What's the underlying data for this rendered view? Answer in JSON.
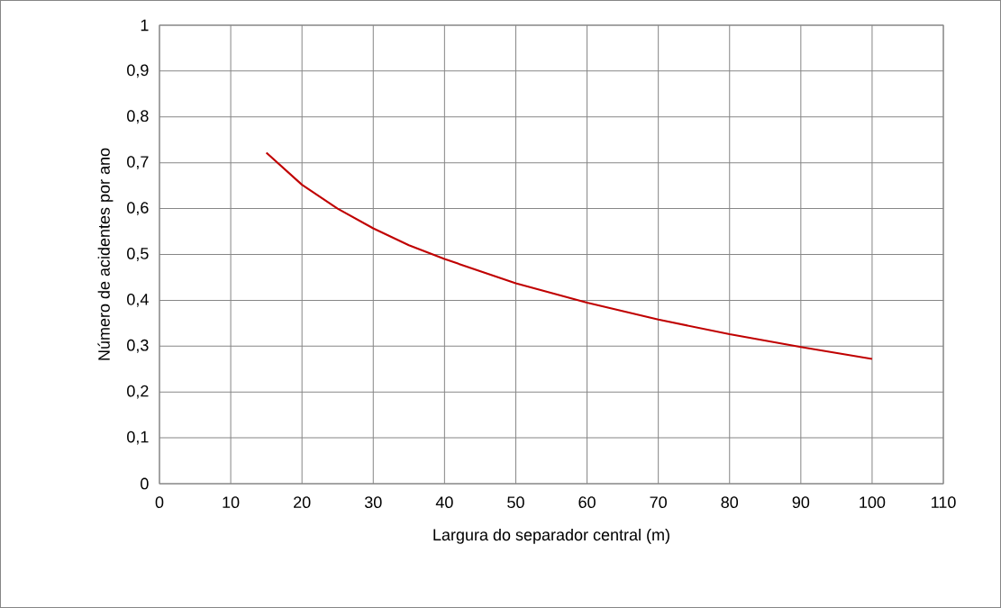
{
  "chart_data": {
    "type": "line",
    "xlabel": "Largura do separador central (m)",
    "ylabel": "Número de acidentes por ano",
    "x": [
      15,
      20,
      25,
      30,
      35,
      40,
      50,
      60,
      70,
      80,
      90,
      100
    ],
    "series": [
      {
        "color": "#c00000",
        "values": [
          0.722,
          0.652,
          0.6,
          0.557,
          0.52,
          0.49,
          0.437,
          0.395,
          0.358,
          0.326,
          0.298,
          0.272
        ]
      }
    ],
    "xlim": [
      0,
      110
    ],
    "xticks": [
      0,
      10,
      20,
      30,
      40,
      50,
      60,
      70,
      80,
      90,
      100,
      110
    ],
    "ylim": [
      0,
      1
    ],
    "yticks": [
      0,
      {
        "value": 0.1,
        "label": "0,1"
      },
      {
        "value": 0.2,
        "label": "0,2"
      },
      {
        "value": 0.3,
        "label": "0,3"
      },
      {
        "value": 0.4,
        "label": "0,4"
      },
      {
        "value": 0.5,
        "label": "0,5"
      },
      {
        "value": 0.6,
        "label": "0,6"
      },
      {
        "value": 0.7,
        "label": "0,7"
      },
      {
        "value": 0.8,
        "label": "0,8"
      },
      {
        "value": 0.9,
        "label": "0,9"
      },
      1
    ],
    "grid": true,
    "marker": "none",
    "line_style": "solid"
  }
}
